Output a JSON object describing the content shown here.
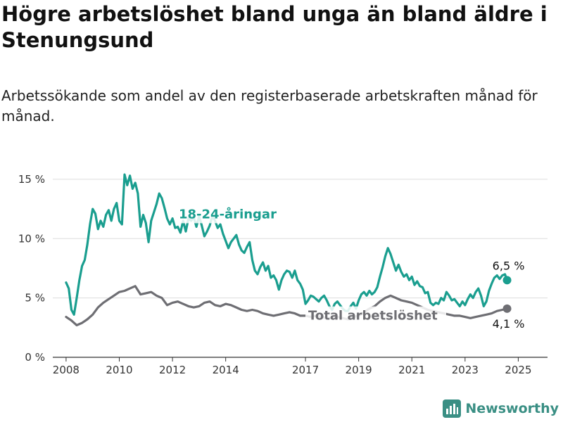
{
  "header": {
    "title": "Högre arbetslöshet bland unga än bland äldre i Stenungsund",
    "subtitle": "Arbetssökande som andel av den registerbaserade arbetskraften månad för månad."
  },
  "brand": {
    "name": "Newsworthy",
    "icon": "bar-chart-logo-icon",
    "color": "#3a8f84"
  },
  "chart_data": {
    "type": "line",
    "x_range": [
      2007.5,
      2026.1
    ],
    "ylim": [
      0,
      16
    ],
    "y_ticks": [
      {
        "value": 0,
        "label": "0 %"
      },
      {
        "value": 5,
        "label": "5 %"
      },
      {
        "value": 10,
        "label": "10 %"
      },
      {
        "value": 15,
        "label": "15 %"
      }
    ],
    "x_ticks": [
      {
        "value": 2008,
        "label": "2008"
      },
      {
        "value": 2010,
        "label": "2010"
      },
      {
        "value": 2012,
        "label": "2012"
      },
      {
        "value": 2014,
        "label": "2014"
      },
      {
        "value": 2017,
        "label": "2017"
      },
      {
        "value": 2019,
        "label": "2019"
      },
      {
        "value": 2021,
        "label": "2021"
      },
      {
        "value": 2023,
        "label": "2023"
      },
      {
        "value": 2025,
        "label": "2025"
      }
    ],
    "grid": "horizontal",
    "series": [
      {
        "name": "18-24-åringar",
        "color": "#1a9e8f",
        "end_label": "6,5 %",
        "points": [
          [
            2008.0,
            6.3
          ],
          [
            2008.1,
            5.8
          ],
          [
            2008.2,
            4.0
          ],
          [
            2008.3,
            3.6
          ],
          [
            2008.4,
            5.0
          ],
          [
            2008.5,
            6.5
          ],
          [
            2008.6,
            7.7
          ],
          [
            2008.7,
            8.2
          ],
          [
            2008.8,
            9.5
          ],
          [
            2008.9,
            11.2
          ],
          [
            2009.0,
            12.5
          ],
          [
            2009.1,
            12.1
          ],
          [
            2009.2,
            10.8
          ],
          [
            2009.3,
            11.5
          ],
          [
            2009.4,
            11.0
          ],
          [
            2009.5,
            12.0
          ],
          [
            2009.6,
            12.4
          ],
          [
            2009.7,
            11.5
          ],
          [
            2009.8,
            12.5
          ],
          [
            2009.9,
            13.0
          ],
          [
            2010.0,
            11.5
          ],
          [
            2010.1,
            11.2
          ],
          [
            2010.2,
            15.4
          ],
          [
            2010.3,
            14.5
          ],
          [
            2010.4,
            15.3
          ],
          [
            2010.5,
            14.2
          ],
          [
            2010.6,
            14.7
          ],
          [
            2010.7,
            13.8
          ],
          [
            2010.8,
            11.0
          ],
          [
            2010.9,
            12.0
          ],
          [
            2011.0,
            11.3
          ],
          [
            2011.1,
            9.7
          ],
          [
            2011.2,
            11.5
          ],
          [
            2011.3,
            12.2
          ],
          [
            2011.4,
            12.9
          ],
          [
            2011.5,
            13.8
          ],
          [
            2011.6,
            13.4
          ],
          [
            2011.7,
            12.6
          ],
          [
            2011.8,
            11.7
          ],
          [
            2011.9,
            11.2
          ],
          [
            2012.0,
            11.7
          ],
          [
            2012.1,
            10.9
          ],
          [
            2012.2,
            11.0
          ],
          [
            2012.3,
            10.5
          ],
          [
            2012.4,
            11.5
          ],
          [
            2012.5,
            10.6
          ],
          [
            2012.6,
            11.7
          ],
          [
            2012.7,
            11.5
          ],
          [
            2012.8,
            11.8
          ],
          [
            2012.9,
            11.0
          ],
          [
            2013.0,
            11.9
          ],
          [
            2013.1,
            11.1
          ],
          [
            2013.2,
            10.2
          ],
          [
            2013.3,
            10.6
          ],
          [
            2013.4,
            11.1
          ],
          [
            2013.5,
            11.9
          ],
          [
            2013.6,
            11.5
          ],
          [
            2013.7,
            10.9
          ],
          [
            2013.8,
            11.2
          ],
          [
            2013.9,
            10.4
          ],
          [
            2014.0,
            9.8
          ],
          [
            2014.1,
            9.2
          ],
          [
            2014.2,
            9.7
          ],
          [
            2014.3,
            10.0
          ],
          [
            2014.4,
            10.3
          ],
          [
            2014.5,
            9.5
          ],
          [
            2014.6,
            9.0
          ],
          [
            2014.7,
            8.8
          ],
          [
            2014.8,
            9.3
          ],
          [
            2014.9,
            9.7
          ],
          [
            2015.0,
            8.2
          ],
          [
            2015.1,
            7.3
          ],
          [
            2015.2,
            7.0
          ],
          [
            2015.3,
            7.6
          ],
          [
            2015.4,
            8.0
          ],
          [
            2015.5,
            7.3
          ],
          [
            2015.6,
            7.7
          ],
          [
            2015.7,
            6.7
          ],
          [
            2015.8,
            6.9
          ],
          [
            2015.9,
            6.5
          ],
          [
            2016.0,
            5.7
          ],
          [
            2016.1,
            6.5
          ],
          [
            2016.2,
            7.0
          ],
          [
            2016.3,
            7.3
          ],
          [
            2016.4,
            7.2
          ],
          [
            2016.5,
            6.7
          ],
          [
            2016.6,
            7.3
          ],
          [
            2016.7,
            6.5
          ],
          [
            2016.8,
            6.2
          ],
          [
            2016.9,
            5.7
          ],
          [
            2017.0,
            4.5
          ],
          [
            2017.1,
            4.8
          ],
          [
            2017.2,
            5.2
          ],
          [
            2017.3,
            5.1
          ],
          [
            2017.4,
            4.9
          ],
          [
            2017.5,
            4.7
          ],
          [
            2017.6,
            5.0
          ],
          [
            2017.7,
            5.2
          ],
          [
            2017.8,
            4.8
          ],
          [
            2017.9,
            4.3
          ],
          [
            2018.0,
            4.0
          ],
          [
            2018.1,
            4.5
          ],
          [
            2018.2,
            4.7
          ],
          [
            2018.3,
            4.4
          ],
          [
            2018.4,
            4.1
          ],
          [
            2018.5,
            3.9
          ],
          [
            2018.6,
            3.9
          ],
          [
            2018.7,
            4.3
          ],
          [
            2018.8,
            4.6
          ],
          [
            2018.9,
            4.1
          ],
          [
            2019.0,
            4.8
          ],
          [
            2019.1,
            5.3
          ],
          [
            2019.2,
            5.5
          ],
          [
            2019.3,
            5.2
          ],
          [
            2019.4,
            5.6
          ],
          [
            2019.5,
            5.3
          ],
          [
            2019.6,
            5.5
          ],
          [
            2019.7,
            5.9
          ],
          [
            2019.8,
            6.8
          ],
          [
            2019.9,
            7.6
          ],
          [
            2020.0,
            8.5
          ],
          [
            2020.1,
            9.2
          ],
          [
            2020.2,
            8.7
          ],
          [
            2020.3,
            8.0
          ],
          [
            2020.4,
            7.3
          ],
          [
            2020.5,
            7.8
          ],
          [
            2020.6,
            7.2
          ],
          [
            2020.7,
            6.8
          ],
          [
            2020.8,
            7.0
          ],
          [
            2020.9,
            6.5
          ],
          [
            2021.0,
            6.8
          ],
          [
            2021.1,
            6.1
          ],
          [
            2021.2,
            6.4
          ],
          [
            2021.3,
            6.0
          ],
          [
            2021.4,
            5.9
          ],
          [
            2021.5,
            5.4
          ],
          [
            2021.6,
            5.5
          ],
          [
            2021.7,
            4.6
          ],
          [
            2021.8,
            4.4
          ],
          [
            2021.9,
            4.6
          ],
          [
            2022.0,
            4.5
          ],
          [
            2022.1,
            5.0
          ],
          [
            2022.2,
            4.8
          ],
          [
            2022.3,
            5.5
          ],
          [
            2022.4,
            5.2
          ],
          [
            2022.5,
            4.8
          ],
          [
            2022.6,
            4.9
          ],
          [
            2022.7,
            4.6
          ],
          [
            2022.8,
            4.3
          ],
          [
            2022.9,
            4.7
          ],
          [
            2023.0,
            4.4
          ],
          [
            2023.1,
            4.9
          ],
          [
            2023.2,
            5.3
          ],
          [
            2023.3,
            5.0
          ],
          [
            2023.4,
            5.5
          ],
          [
            2023.5,
            5.8
          ],
          [
            2023.6,
            5.2
          ],
          [
            2023.7,
            4.3
          ],
          [
            2023.8,
            4.7
          ],
          [
            2023.9,
            5.6
          ],
          [
            2024.0,
            6.2
          ],
          [
            2024.1,
            6.7
          ],
          [
            2024.2,
            6.9
          ],
          [
            2024.3,
            6.6
          ],
          [
            2024.4,
            6.9
          ],
          [
            2024.5,
            7.0
          ],
          [
            2024.58,
            6.5
          ]
        ]
      },
      {
        "name": "Total arbetslöshet",
        "color": "#6e6e73",
        "end_label": "4,1 %",
        "points": [
          [
            2008.0,
            3.4
          ],
          [
            2008.2,
            3.1
          ],
          [
            2008.4,
            2.7
          ],
          [
            2008.6,
            2.9
          ],
          [
            2008.8,
            3.2
          ],
          [
            2009.0,
            3.6
          ],
          [
            2009.2,
            4.2
          ],
          [
            2009.4,
            4.6
          ],
          [
            2009.6,
            4.9
          ],
          [
            2009.8,
            5.2
          ],
          [
            2010.0,
            5.5
          ],
          [
            2010.2,
            5.6
          ],
          [
            2010.4,
            5.8
          ],
          [
            2010.6,
            6.0
          ],
          [
            2010.8,
            5.3
          ],
          [
            2011.0,
            5.4
          ],
          [
            2011.2,
            5.5
          ],
          [
            2011.4,
            5.2
          ],
          [
            2011.6,
            5.0
          ],
          [
            2011.8,
            4.4
          ],
          [
            2012.0,
            4.6
          ],
          [
            2012.2,
            4.7
          ],
          [
            2012.4,
            4.5
          ],
          [
            2012.6,
            4.3
          ],
          [
            2012.8,
            4.2
          ],
          [
            2013.0,
            4.3
          ],
          [
            2013.2,
            4.6
          ],
          [
            2013.4,
            4.7
          ],
          [
            2013.6,
            4.4
          ],
          [
            2013.8,
            4.3
          ],
          [
            2014.0,
            4.5
          ],
          [
            2014.2,
            4.4
          ],
          [
            2014.4,
            4.2
          ],
          [
            2014.6,
            4.0
          ],
          [
            2014.8,
            3.9
          ],
          [
            2015.0,
            4.0
          ],
          [
            2015.2,
            3.9
          ],
          [
            2015.4,
            3.7
          ],
          [
            2015.6,
            3.6
          ],
          [
            2015.8,
            3.5
          ],
          [
            2016.0,
            3.6
          ],
          [
            2016.2,
            3.7
          ],
          [
            2016.4,
            3.8
          ],
          [
            2016.6,
            3.7
          ],
          [
            2016.8,
            3.5
          ],
          [
            2017.0,
            3.5
          ],
          [
            2017.2,
            3.4
          ],
          [
            2017.4,
            3.5
          ],
          [
            2017.6,
            3.4
          ],
          [
            2017.8,
            3.3
          ],
          [
            2018.0,
            3.3
          ],
          [
            2018.2,
            3.4
          ],
          [
            2018.4,
            3.3
          ],
          [
            2018.6,
            3.2
          ],
          [
            2018.8,
            3.4
          ],
          [
            2019.0,
            3.5
          ],
          [
            2019.2,
            3.8
          ],
          [
            2019.4,
            4.1
          ],
          [
            2019.6,
            4.3
          ],
          [
            2019.8,
            4.7
          ],
          [
            2020.0,
            5.0
          ],
          [
            2020.2,
            5.2
          ],
          [
            2020.4,
            5.0
          ],
          [
            2020.6,
            4.8
          ],
          [
            2020.8,
            4.7
          ],
          [
            2021.0,
            4.6
          ],
          [
            2021.2,
            4.4
          ],
          [
            2021.4,
            4.2
          ],
          [
            2021.6,
            4.0
          ],
          [
            2021.8,
            3.9
          ],
          [
            2022.0,
            3.8
          ],
          [
            2022.2,
            3.7
          ],
          [
            2022.4,
            3.6
          ],
          [
            2022.6,
            3.5
          ],
          [
            2022.8,
            3.5
          ],
          [
            2023.0,
            3.4
          ],
          [
            2023.2,
            3.3
          ],
          [
            2023.4,
            3.4
          ],
          [
            2023.6,
            3.5
          ],
          [
            2023.8,
            3.6
          ],
          [
            2024.0,
            3.7
          ],
          [
            2024.2,
            3.9
          ],
          [
            2024.4,
            4.0
          ],
          [
            2024.58,
            4.1
          ]
        ]
      }
    ]
  }
}
